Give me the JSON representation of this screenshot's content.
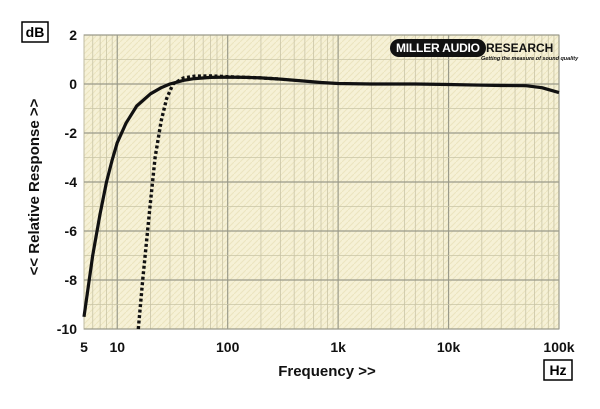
{
  "chart_data": {
    "type": "line",
    "xlabel": "Frequency >>",
    "ylabel": "<< Relative Response >>",
    "x_unit": "Hz",
    "y_unit": "dB",
    "xscale": "log",
    "xlim": [
      5,
      100000
    ],
    "ylim": [
      -10,
      2
    ],
    "grid": true,
    "x_ticks": [
      {
        "value": 5,
        "label": "5"
      },
      {
        "value": 10,
        "label": "10"
      },
      {
        "value": 100,
        "label": "100"
      },
      {
        "value": 1000,
        "label": "1k"
      },
      {
        "value": 10000,
        "label": "10k"
      },
      {
        "value": 100000,
        "label": "100k"
      }
    ],
    "y_ticks": [
      {
        "value": 2,
        "label": "2"
      },
      {
        "value": 0,
        "label": "0"
      },
      {
        "value": -2,
        "label": "-2"
      },
      {
        "value": -4,
        "label": "-4"
      },
      {
        "value": -6,
        "label": "-6"
      },
      {
        "value": -8,
        "label": "-8"
      },
      {
        "value": -10,
        "label": "-10"
      }
    ],
    "series": [
      {
        "style": "solid",
        "color": "#111111",
        "x": [
          5,
          6,
          7,
          8,
          9,
          10,
          12,
          15,
          20,
          25,
          30,
          40,
          50,
          70,
          100,
          150,
          200,
          300,
          500,
          700,
          1000,
          2000,
          5000,
          10000,
          20000,
          30000,
          50000,
          70000,
          100000
        ],
        "y": [
          -9.5,
          -7.0,
          -5.3,
          -4.0,
          -3.1,
          -2.4,
          -1.6,
          -0.9,
          -0.4,
          -0.15,
          0.0,
          0.15,
          0.22,
          0.27,
          0.28,
          0.27,
          0.25,
          0.2,
          0.12,
          0.06,
          0.02,
          0.0,
          0.0,
          -0.02,
          -0.05,
          -0.06,
          -0.07,
          -0.15,
          -0.35
        ]
      },
      {
        "style": "dotted",
        "color": "#111111",
        "x": [
          15.5,
          17,
          20,
          22,
          25,
          28,
          32,
          40,
          50,
          70,
          100,
          150,
          200,
          300
        ],
        "y": [
          -10.0,
          -8.0,
          -4.8,
          -3.0,
          -1.5,
          -0.6,
          0.0,
          0.25,
          0.32,
          0.33,
          0.3,
          0.27,
          0.25,
          0.2
        ]
      }
    ]
  },
  "branding": {
    "logo_left": "MILLER AUDIO",
    "logo_right": "RESEARCH",
    "tagline": "Getting the measure of sound quality"
  }
}
